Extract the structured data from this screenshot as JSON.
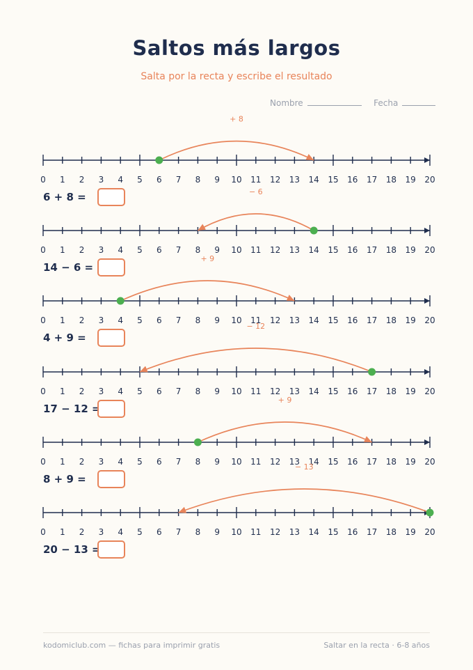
{
  "header": {
    "title": "Saltos más largos",
    "subtitle": "Salta por la recta y escribe el resultado",
    "name_label": "Nombre",
    "date_label": "Fecha"
  },
  "numberline": {
    "min": 0,
    "max": 20
  },
  "colors": {
    "ink": "#1f2d4d",
    "accent": "#e8845a",
    "dot": "#4caf50"
  },
  "exercises": [
    {
      "start": 6,
      "end": 14,
      "jump_label": "+ 8",
      "equation": "6 + 8 ="
    },
    {
      "start": 14,
      "end": 8,
      "jump_label": "− 6",
      "equation": "14 − 6 ="
    },
    {
      "start": 4,
      "end": 13,
      "jump_label": "+ 9",
      "equation": "4 + 9 ="
    },
    {
      "start": 17,
      "end": 5,
      "jump_label": "− 12",
      "equation": "17 − 12 ="
    },
    {
      "start": 8,
      "end": 17,
      "jump_label": "+ 9",
      "equation": "8 + 9 ="
    },
    {
      "start": 20,
      "end": 7,
      "jump_label": "− 13",
      "equation": "20 − 13 ="
    }
  ],
  "footer": {
    "left": "kodomiclub.com — fichas para imprimir gratis",
    "right": "Saltar en la recta · 6-8 años"
  }
}
